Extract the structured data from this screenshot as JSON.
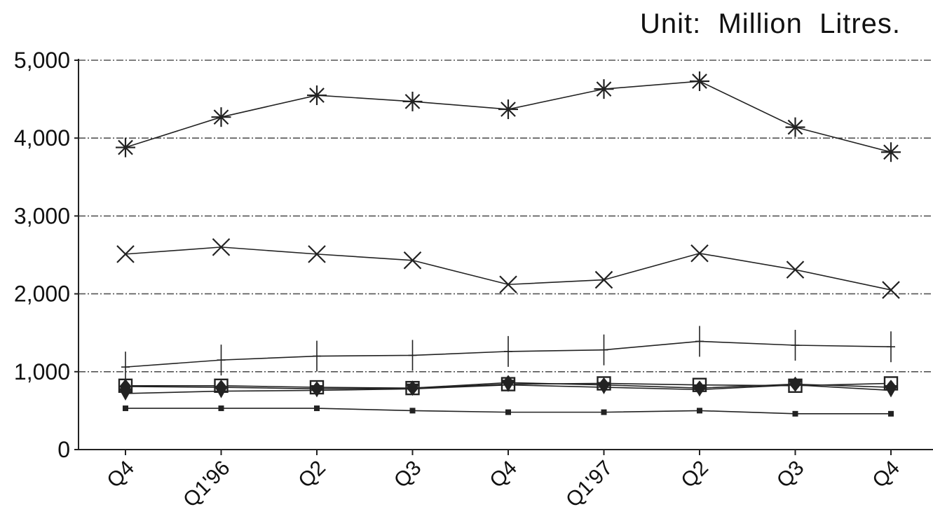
{
  "unit_label": "Unit:  Million  Litres.",
  "chart_data": {
    "type": "line",
    "title": "",
    "xlabel": "",
    "ylabel": "",
    "categories": [
      "Q4",
      "Q1'96",
      "Q2",
      "Q3",
      "Q4",
      "Q1'97",
      "Q2",
      "Q3",
      "Q4"
    ],
    "ylim": [
      0,
      5000
    ],
    "yticks": [
      0,
      1000,
      2000,
      3000,
      4000,
      5000
    ],
    "ytick_labels": [
      "0",
      "1,000",
      "2,000",
      "3,000",
      "4,000",
      "5,000"
    ],
    "grid": "horizontal dashed",
    "legend": "none",
    "series": [
      {
        "marker": "asterisk",
        "values": [
          3880,
          4270,
          4550,
          4470,
          4370,
          4630,
          4730,
          4140,
          3820
        ]
      },
      {
        "marker": "x",
        "values": [
          2510,
          2600,
          2510,
          2430,
          2120,
          2180,
          2520,
          2310,
          2050
        ]
      },
      {
        "marker": "plus",
        "values": [
          1060,
          1150,
          1200,
          1210,
          1260,
          1280,
          1390,
          1340,
          1320
        ]
      },
      {
        "marker": "square-open",
        "values": [
          820,
          820,
          800,
          790,
          840,
          850,
          830,
          820,
          850
        ]
      },
      {
        "marker": "diamond",
        "values": [
          810,
          800,
          780,
          790,
          860,
          830,
          790,
          840,
          800
        ]
      },
      {
        "marker": "triangle-down",
        "values": [
          720,
          750,
          760,
          780,
          830,
          800,
          770,
          830,
          760
        ]
      },
      {
        "marker": "square-filled",
        "values": [
          530,
          530,
          530,
          500,
          480,
          480,
          500,
          460,
          460
        ]
      }
    ],
    "colors": {
      "line": "#222222",
      "grid": "#555555",
      "text": "#111111"
    }
  }
}
